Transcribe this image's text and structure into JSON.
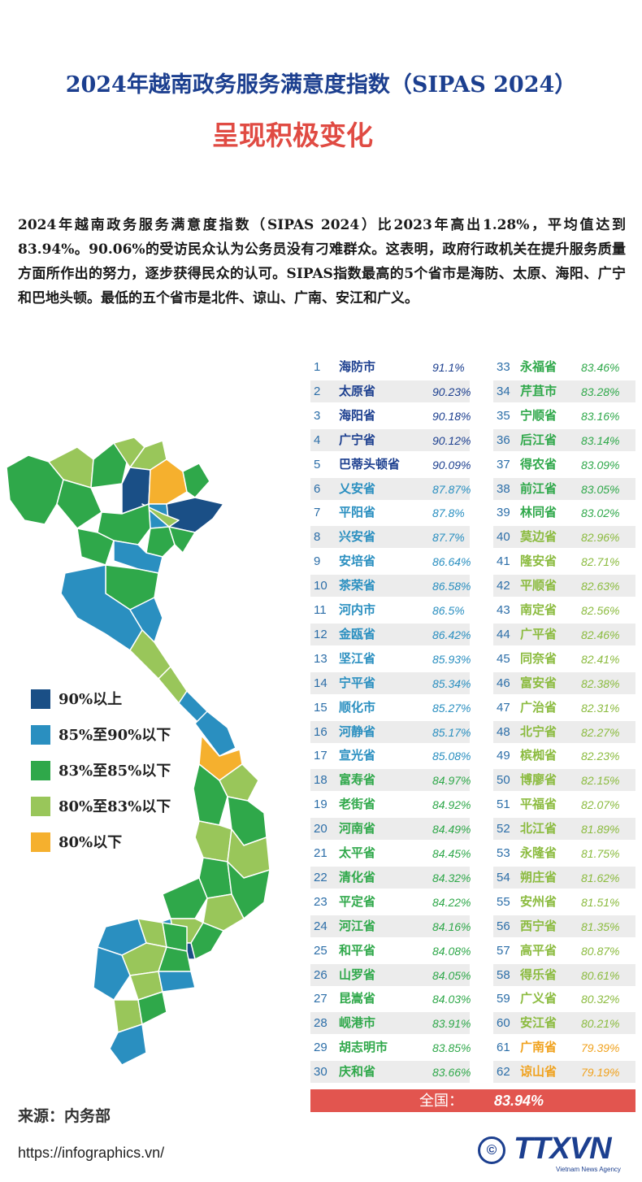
{
  "title_line1": "2024年越南政务服务满意度指数（SIPAS 2024）",
  "title_line2": "呈现积极变化",
  "intro": "2024年越南政务服务满意度指数（SIPAS 2024）比2023年高出1.28%，平均值达到83.94%。90.06%的受访民众认为公务员没有刁难群众。这表明，政府行政机关在提升服务质量方面所作出的努力，逐步获得民众的认可。SIPAS指数最高的5个省市是海防、太原、海阳、广宁和巴地头顿。最低的五个省市是北件、谅山、广南、安江和广义。",
  "colors": {
    "tier1": "#1a4f86",
    "tier2": "#2a8fc0",
    "tier3": "#2fa84a",
    "tier4": "#99c65a",
    "tier5": "#f5b02e",
    "accent_red": "#e2554f",
    "title_blue": "#1c3f8f"
  },
  "legend": [
    {
      "label": "90%以上",
      "color": "#1a4f86"
    },
    {
      "label": "85%至90%以下",
      "color": "#2a8fc0"
    },
    {
      "label": "83%至85%以下",
      "color": "#2fa84a"
    },
    {
      "label": "80%至83%以下",
      "color": "#99c65a"
    },
    {
      "label": "80%以下",
      "color": "#f5b02e"
    }
  ],
  "rankings": [
    {
      "rank": "1",
      "name": "海防市",
      "value": "91.1%",
      "tier": 1
    },
    {
      "rank": "2",
      "name": "太原省",
      "value": "90.23%",
      "tier": 1
    },
    {
      "rank": "3",
      "name": "海阳省",
      "value": "90.18%",
      "tier": 1
    },
    {
      "rank": "4",
      "name": "广宁省",
      "value": "90.12%",
      "tier": 1
    },
    {
      "rank": "5",
      "name": "巴蒂头顿省",
      "value": "90.09%",
      "tier": 1
    },
    {
      "rank": "6",
      "name": "乂安省",
      "value": "87.87%",
      "tier": 2
    },
    {
      "rank": "7",
      "name": "平阳省",
      "value": "87.8%",
      "tier": 2
    },
    {
      "rank": "8",
      "name": "兴安省",
      "value": "87.7%",
      "tier": 2
    },
    {
      "rank": "9",
      "name": "安培省",
      "value": "86.64%",
      "tier": 2
    },
    {
      "rank": "10",
      "name": "茶荣省",
      "value": "86.58%",
      "tier": 2
    },
    {
      "rank": "11",
      "name": "河内市",
      "value": "86.5%",
      "tier": 2
    },
    {
      "rank": "12",
      "name": "金瓯省",
      "value": "86.42%",
      "tier": 2
    },
    {
      "rank": "13",
      "name": "坚江省",
      "value": "85.93%",
      "tier": 2
    },
    {
      "rank": "14",
      "name": "宁平省",
      "value": "85.34%",
      "tier": 2
    },
    {
      "rank": "15",
      "name": "顺化市",
      "value": "85.27%",
      "tier": 2
    },
    {
      "rank": "16",
      "name": "河静省",
      "value": "85.17%",
      "tier": 2
    },
    {
      "rank": "17",
      "name": "宣光省",
      "value": "85.08%",
      "tier": 2
    },
    {
      "rank": "18",
      "name": "富寿省",
      "value": "84.97%",
      "tier": 3
    },
    {
      "rank": "19",
      "name": "老街省",
      "value": "84.92%",
      "tier": 3
    },
    {
      "rank": "20",
      "name": "河南省",
      "value": "84.49%",
      "tier": 3
    },
    {
      "rank": "21",
      "name": "太平省",
      "value": "84.45%",
      "tier": 3
    },
    {
      "rank": "22",
      "name": "清化省",
      "value": "84.32%",
      "tier": 3
    },
    {
      "rank": "23",
      "name": "平定省",
      "value": "84.22%",
      "tier": 3
    },
    {
      "rank": "24",
      "name": "河江省",
      "value": "84.16%",
      "tier": 3
    },
    {
      "rank": "25",
      "name": "和平省",
      "value": "84.08%",
      "tier": 3
    },
    {
      "rank": "26",
      "name": "山罗省",
      "value": "84.05%",
      "tier": 3
    },
    {
      "rank": "27",
      "name": "昆嵩省",
      "value": "84.03%",
      "tier": 3
    },
    {
      "rank": "28",
      "name": "岘港市",
      "value": "83.91%",
      "tier": 3
    },
    {
      "rank": "29",
      "name": "胡志明市",
      "value": "83.85%",
      "tier": 3
    },
    {
      "rank": "30",
      "name": "庆和省",
      "value": "83.66%",
      "tier": 3
    },
    {
      "rank": "33",
      "name": "永福省",
      "value": "83.46%",
      "tier": 3
    },
    {
      "rank": "34",
      "name": "芹苴市",
      "value": "83.28%",
      "tier": 3
    },
    {
      "rank": "35",
      "name": "宁顺省",
      "value": "83.16%",
      "tier": 3
    },
    {
      "rank": "36",
      "name": "后江省",
      "value": "83.14%",
      "tier": 3
    },
    {
      "rank": "37",
      "name": "得农省",
      "value": "83.09%",
      "tier": 3
    },
    {
      "rank": "38",
      "name": "前江省",
      "value": "83.05%",
      "tier": 3
    },
    {
      "rank": "39",
      "name": "林同省",
      "value": "83.02%",
      "tier": 3
    },
    {
      "rank": "40",
      "name": "莫边省",
      "value": "82.96%",
      "tier": 4
    },
    {
      "rank": "41",
      "name": "隆安省",
      "value": "82.71%",
      "tier": 4
    },
    {
      "rank": "42",
      "name": "平顺省",
      "value": "82.63%",
      "tier": 4
    },
    {
      "rank": "43",
      "name": "南定省",
      "value": "82.56%",
      "tier": 4
    },
    {
      "rank": "44",
      "name": "广平省",
      "value": "82.46%",
      "tier": 4
    },
    {
      "rank": "45",
      "name": "同奈省",
      "value": "82.41%",
      "tier": 4
    },
    {
      "rank": "46",
      "name": "富安省",
      "value": "82.38%",
      "tier": 4
    },
    {
      "rank": "47",
      "name": "广治省",
      "value": "82.31%",
      "tier": 4
    },
    {
      "rank": "48",
      "name": "北宁省",
      "value": "82.27%",
      "tier": 4
    },
    {
      "rank": "49",
      "name": "槟椥省",
      "value": "82.23%",
      "tier": 4
    },
    {
      "rank": "50",
      "name": "博廖省",
      "value": "82.15%",
      "tier": 4
    },
    {
      "rank": "51",
      "name": "平福省",
      "value": "82.07%",
      "tier": 4
    },
    {
      "rank": "52",
      "name": "北江省",
      "value": "81.89%",
      "tier": 4
    },
    {
      "rank": "53",
      "name": "永隆省",
      "value": "81.75%",
      "tier": 4
    },
    {
      "rank": "54",
      "name": "朔庄省",
      "value": "81.62%",
      "tier": 4
    },
    {
      "rank": "55",
      "name": "安州省",
      "value": "81.51%",
      "tier": 4
    },
    {
      "rank": "56",
      "name": "西宁省",
      "value": "81.35%",
      "tier": 4
    },
    {
      "rank": "57",
      "name": "高平省",
      "value": "80.87%",
      "tier": 4
    },
    {
      "rank": "58",
      "name": "得乐省",
      "value": "80.61%",
      "tier": 4
    },
    {
      "rank": "59",
      "name": "广义省",
      "value": "80.32%",
      "tier": 4
    },
    {
      "rank": "60",
      "name": "安江省",
      "value": "80.21%",
      "tier": 4
    },
    {
      "rank": "61",
      "name": "广南省",
      "value": "79.39%",
      "tier": 5
    },
    {
      "rank": "62",
      "name": "谅山省",
      "value": "79.19%",
      "tier": 5
    }
  ],
  "total": {
    "label": "全国：",
    "value": "83.94%"
  },
  "source": "来源：内务部",
  "url": "https://infographics.vn/",
  "logo": {
    "text": "TTXVN",
    "sub": "Vietnam News Agency",
    "copyright": "©"
  },
  "map_icon": "vietnam-choropleth-map"
}
